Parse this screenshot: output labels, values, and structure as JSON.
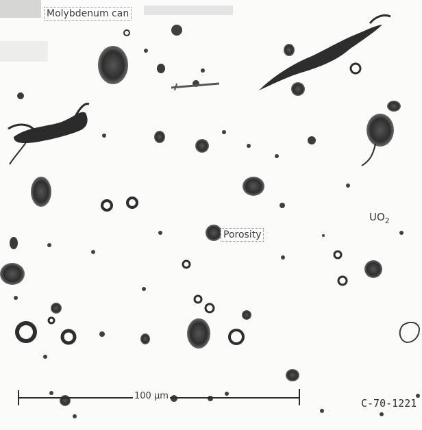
{
  "labels": {
    "molybdenum_can": "Molybdenum can",
    "porosity": "Porosity",
    "uo2_main": "UO",
    "uo2_sub": "2",
    "scale_bar": "100 µm",
    "figure_id": "C-70-1221"
  },
  "colors": {
    "background": "#fbfbfa",
    "pore_dark": "#2c2c2c",
    "pore_mid": "#5a5a5a",
    "text": "#3a3a3a"
  }
}
